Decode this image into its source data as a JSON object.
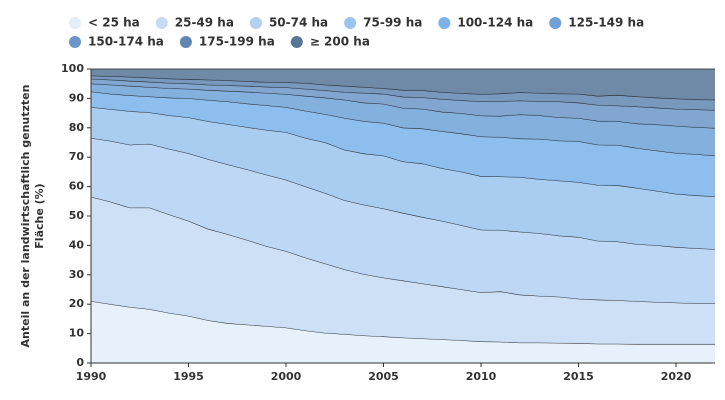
{
  "chart_data": {
    "type": "stacked_area",
    "ylabel": [
      "Anteil an der landwirtschaftlich genutzten",
      "Fläche (%)"
    ],
    "x": [
      1990,
      1991,
      1992,
      1993,
      1994,
      1995,
      1996,
      1997,
      1998,
      1999,
      2000,
      2001,
      2002,
      2003,
      2004,
      2005,
      2006,
      2007,
      2008,
      2009,
      2010,
      2011,
      2012,
      2013,
      2014,
      2015,
      2016,
      2017,
      2018,
      2019,
      2020,
      2021,
      2022
    ],
    "xlim": [
      1990,
      2022
    ],
    "xticks": [
      1990,
      1995,
      2000,
      2005,
      2010,
      2015,
      2020
    ],
    "ylim": [
      0,
      100
    ],
    "yticks": [
      0,
      10,
      20,
      30,
      40,
      50,
      60,
      70,
      80,
      90,
      100
    ],
    "legend_position": "top",
    "series": [
      {
        "name": "< 25 ha",
        "color": "#e3eefa",
        "values": [
          21,
          20,
          19,
          18.3,
          17,
          16,
          14.5,
          13.5,
          13,
          12.5,
          12,
          11,
          10.2,
          9.8,
          9.3,
          9,
          8.6,
          8.3,
          8,
          7.7,
          7.3,
          7.2,
          6.9,
          6.9,
          6.8,
          6.7,
          6.5,
          6.5,
          6.4,
          6.4,
          6.4,
          6.4,
          6.4
        ]
      },
      {
        "name": "25-49 ha",
        "color": "#c6dbf4",
        "values": [
          35.5,
          34.8,
          33.8,
          34.5,
          33.5,
          32.3,
          31.1,
          30.3,
          28.8,
          27.2,
          26,
          24.8,
          23.6,
          22,
          20.9,
          20,
          19.4,
          18.7,
          18,
          17.3,
          16.7,
          17.1,
          16.3,
          15.9,
          15.7,
          15.1,
          15,
          14.8,
          14.6,
          14.3,
          14.1,
          13.9,
          13.9
        ]
      },
      {
        "name": "50-74 ha",
        "color": "#b2d0f2",
        "values": [
          20,
          20.7,
          21.4,
          21.7,
          22.3,
          23,
          23.7,
          23.7,
          24,
          24.3,
          24.3,
          24.2,
          24,
          23.5,
          23.6,
          23.5,
          23,
          22.6,
          22.3,
          21.8,
          21.3,
          20.9,
          21.4,
          21.3,
          20.8,
          21,
          20,
          20,
          19.4,
          19.3,
          18.9,
          18.7,
          18.4
        ]
      },
      {
        "name": "75-99 ha",
        "color": "#9ac4ef",
        "values": [
          10.5,
          10.8,
          11.4,
          10.7,
          11.4,
          12.2,
          12.9,
          13.7,
          14.4,
          15.2,
          16.2,
          16.5,
          17.2,
          17.2,
          17.4,
          18,
          17.5,
          18.2,
          17.9,
          18.2,
          18.2,
          18.2,
          18.6,
          18.4,
          18.7,
          18.7,
          19,
          19.1,
          19.1,
          18.5,
          18.1,
          18,
          17.9
        ]
      },
      {
        "name": "100-124 ha",
        "color": "#7ab3ea",
        "values": [
          5.3,
          5.2,
          5.4,
          5.4,
          6,
          6.5,
          7.2,
          7.7,
          8,
          8.4,
          8.5,
          9.2,
          9.6,
          10.8,
          11,
          11.1,
          11.5,
          11.9,
          12.6,
          13,
          13.5,
          13.4,
          13.1,
          13.7,
          13.6,
          13.9,
          13.7,
          13.7,
          13.6,
          13.7,
          13.9,
          14,
          13.9
        ]
      },
      {
        "name": "125-149 ha",
        "color": "#6ea2d8",
        "values": [
          2.7,
          3.1,
          3.2,
          3.2,
          3.2,
          3.2,
          3.4,
          3.6,
          4,
          4.2,
          4.4,
          5.1,
          5.6,
          6.2,
          6.3,
          6.5,
          6.7,
          6.7,
          6.6,
          6.9,
          7.1,
          7.2,
          8.2,
          8,
          7.9,
          7.9,
          8.1,
          8.1,
          8.3,
          8.9,
          9.2,
          9.2,
          9.4
        ]
      },
      {
        "name": "150-174 ha",
        "color": "#6d96c8",
        "values": [
          1.6,
          1.7,
          1.7,
          1.8,
          1.8,
          1.8,
          1.8,
          1.9,
          2,
          2.1,
          2.3,
          2.4,
          2.5,
          2.6,
          3.3,
          3.4,
          3.8,
          3.9,
          4.3,
          4.4,
          4.8,
          5,
          4.7,
          4.8,
          5.4,
          5.2,
          5.4,
          5.3,
          5.8,
          5.7,
          5.8,
          6,
          6.1
        ]
      },
      {
        "name": "175-199 ha",
        "color": "#6086b2",
        "values": [
          1.1,
          1.2,
          1.4,
          1.4,
          1.5,
          1.5,
          1.7,
          1.7,
          1.6,
          1.6,
          1.7,
          2,
          1.9,
          2.1,
          2,
          1.9,
          2.3,
          2.4,
          2.4,
          2.4,
          2.5,
          2.6,
          2.8,
          2.8,
          2.7,
          3,
          3.1,
          3.6,
          3.4,
          3.4,
          3.5,
          3.4,
          3.5
        ]
      },
      {
        "name": "≥ 200 ha",
        "color": "#567696",
        "values": [
          2.3,
          2.5,
          2.7,
          3,
          3.3,
          3.5,
          3.7,
          3.9,
          4.2,
          4.5,
          4.6,
          4.8,
          5.4,
          5.8,
          6.2,
          6.6,
          7.2,
          7.3,
          7.9,
          8.3,
          8.6,
          8.4,
          8,
          8.2,
          8.4,
          8.5,
          9.2,
          8.9,
          9.4,
          9.8,
          10.1,
          10.4,
          10.5
        ]
      }
    ]
  }
}
